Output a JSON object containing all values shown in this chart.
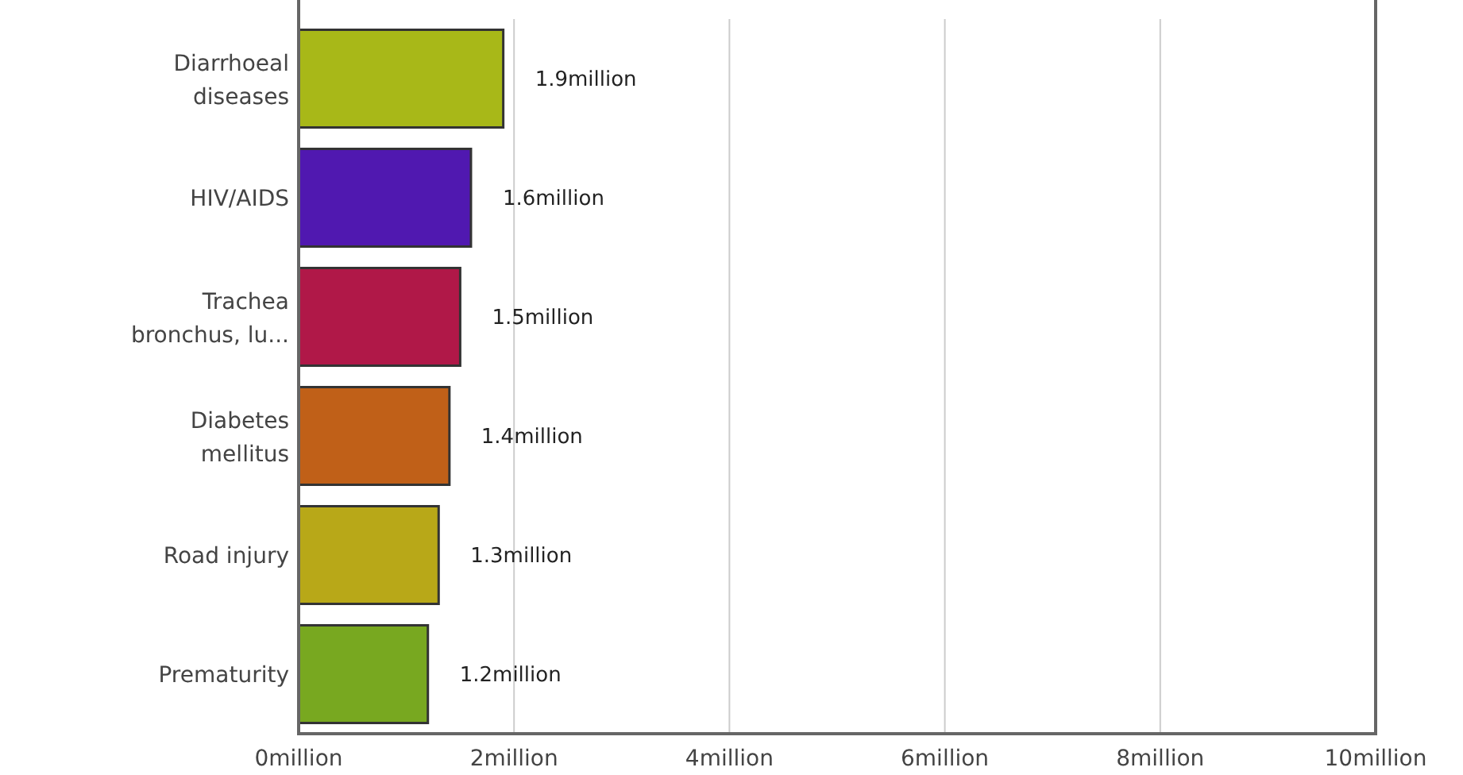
{
  "chart_data": {
    "type": "bar",
    "orientation": "horizontal",
    "categories": [
      "Diarrhoeal diseases",
      "HIV/AIDS",
      "Trachea bronchus, lu...",
      "Diabetes mellitus",
      "Road injury",
      "Prematurity"
    ],
    "values": [
      1.9,
      1.6,
      1.5,
      1.4,
      1.3,
      1.2
    ],
    "colors": [
      "#a8b818",
      "#5018b0",
      "#b01848",
      "#c06018",
      "#b8a818",
      "#78a820"
    ],
    "value_labels": [
      "1.9million",
      "1.6million",
      "1.5million",
      "1.4million",
      "1.3million",
      "1.2million"
    ],
    "xlim": [
      0,
      10
    ],
    "xticks": [
      {
        "value": 0,
        "label": "0million"
      },
      {
        "value": 2,
        "label": "2million"
      },
      {
        "value": 4,
        "label": "4million"
      },
      {
        "value": 6,
        "label": "6million"
      },
      {
        "value": 8,
        "label": "8million"
      },
      {
        "value": 10,
        "label": "10million"
      }
    ],
    "grid": "x"
  }
}
